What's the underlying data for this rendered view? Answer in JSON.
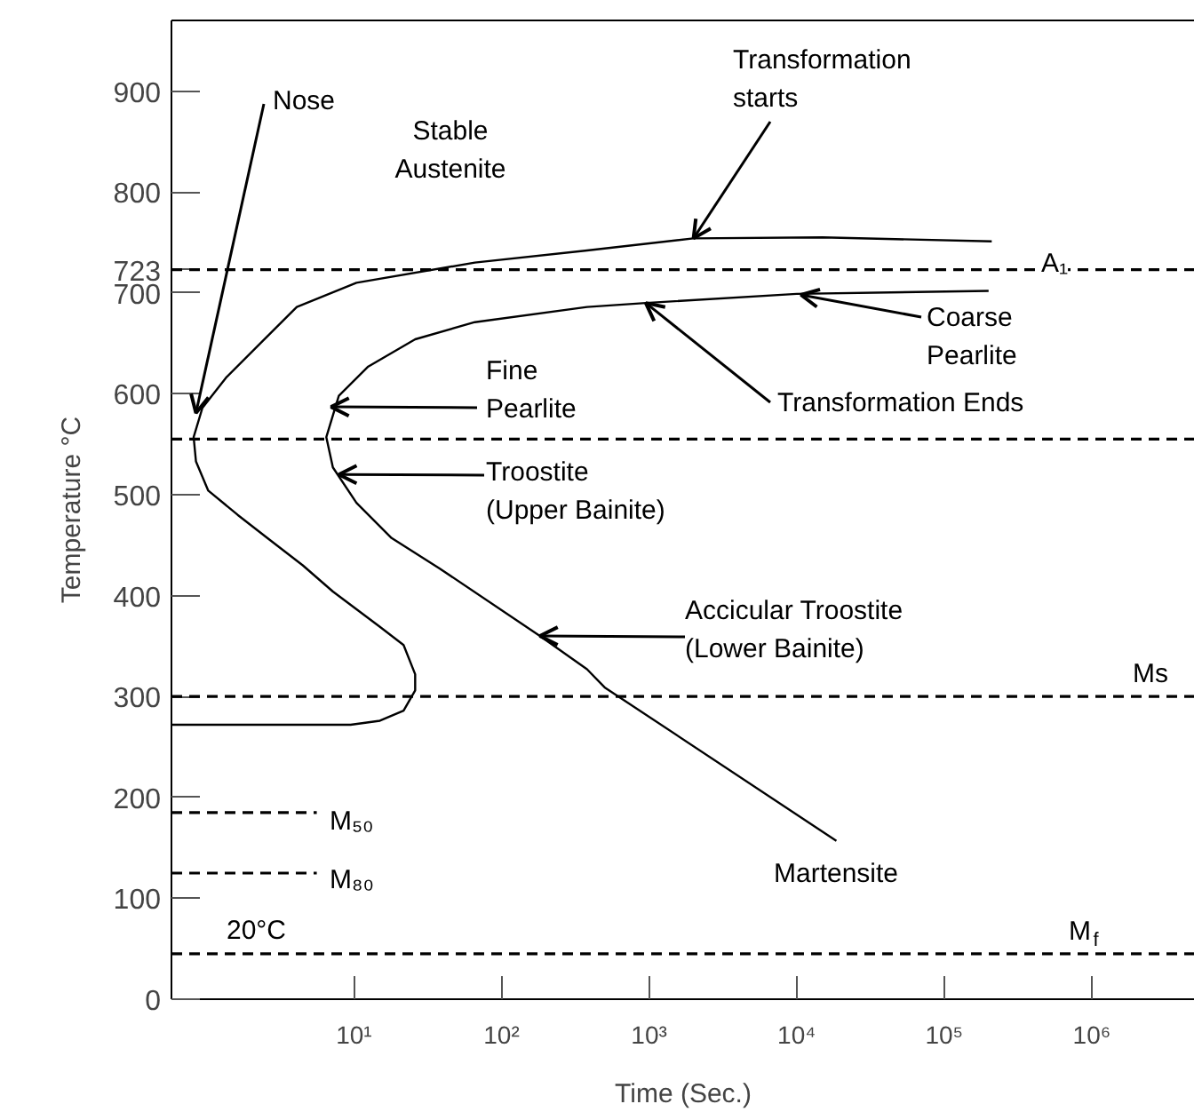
{
  "chart_data": {
    "type": "line",
    "xlabel": "Time (Sec.)",
    "ylabel": "Temperature °C",
    "log": "x",
    "grid": false,
    "xlim": [
      0.58,
      5000000
    ],
    "ylim": [
      0,
      970
    ],
    "xticks": [
      {
        "value": 10,
        "label": "10¹"
      },
      {
        "value": 100,
        "label": "10²"
      },
      {
        "value": 1000,
        "label": "10³"
      },
      {
        "value": 10000,
        "label": "10⁴"
      },
      {
        "value": 100000,
        "label": "10⁵"
      },
      {
        "value": 1000000,
        "label": "10⁶"
      }
    ],
    "yticks": [
      0,
      100,
      200,
      300,
      400,
      500,
      600,
      700,
      723,
      800,
      900
    ],
    "series": [
      {
        "color": "#000000",
        "line_style": "solid",
        "x": [
          210000,
          15000,
          2000,
          380,
          66,
          10.4,
          4.1,
          2.36,
          1.36,
          0.94,
          0.82,
          0.85,
          1.03,
          1.63,
          2.59,
          4.5,
          7.2,
          15,
          21.7,
          26,
          26,
          21.7,
          15,
          9.5,
          0.58
        ],
        "values": [
          751,
          755,
          754,
          742,
          730,
          710,
          686,
          651,
          616,
          586,
          557,
          533,
          504,
          480,
          457,
          430,
          404,
          369,
          351,
          322,
          306,
          286,
          276,
          272,
          272
        ]
      },
      {
        "color": "#000000",
        "line_style": "solid",
        "x": [
          200000,
          10000,
          950,
          380,
          66,
          26,
          12.5,
          7.9,
          6.5,
          7.2,
          10.4,
          18,
          38,
          182,
          380,
          500,
          18600
        ],
        "values": [
          702,
          699,
          690,
          686,
          671,
          654,
          627,
          598,
          557,
          527,
          492,
          457,
          427,
          360,
          327,
          309,
          157
        ]
      },
      {
        "name": "M₅₀",
        "color": "#000000",
        "line_style": "dashed",
        "x": [
          0.58,
          5.6
        ],
        "values": [
          185,
          185
        ]
      },
      {
        "name": "M₈₀",
        "color": "#000000",
        "line_style": "dashed",
        "x": [
          0.58,
          5.6
        ],
        "values": [
          125,
          125
        ]
      }
    ],
    "ref_lines": [
      {
        "axis": "y",
        "value": 723,
        "label": "A₁",
        "line_style": "dashed"
      },
      {
        "axis": "y",
        "value": 555,
        "line_style": "dashed"
      },
      {
        "axis": "y",
        "value": 300,
        "label": "Ms",
        "line_style": "dashed"
      },
      {
        "axis": "y",
        "value": 45,
        "label": "M$_{f}$",
        "line_style": "dashed"
      }
    ],
    "annotations": [
      {
        "text": "Nose",
        "x": 0.85,
        "y": 581
      },
      "Stable\nAustenite",
      {
        "text": "Transformation\nstarts",
        "x": 2000,
        "y": 754
      },
      {
        "text": "Fine\nPearlite",
        "x": 7.0,
        "y": 587
      },
      {
        "text": "Troostite\n(Upper Bainite)",
        "x": 7.9,
        "y": 520
      },
      {
        "text": "Coarse\nPearlite",
        "x": 10700,
        "y": 698
      },
      {
        "text": "Transformation Ends",
        "x": 950,
        "y": 690
      },
      {
        "text": "Accicular Troostite\n(Lower Bainite)",
        "x": 182,
        "y": 360
      },
      "Martensite",
      "20°C"
    ]
  }
}
